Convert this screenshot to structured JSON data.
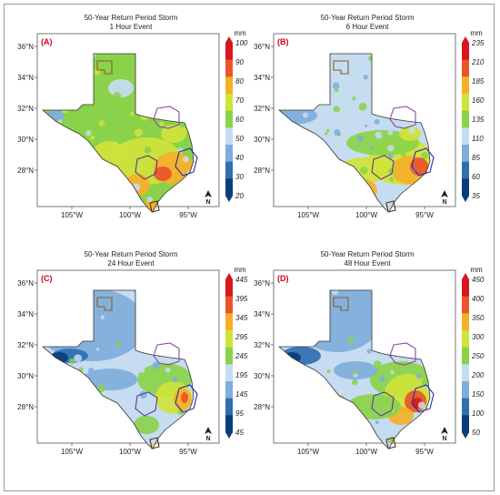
{
  "panels": [
    {
      "id": "A",
      "label": "(A)",
      "title": "50-Year Return Period Storm",
      "subtitle": "1 Hour Event",
      "units": "mm",
      "colorbar": {
        "ticks": [
          "20",
          "30",
          "40",
          "50",
          "60",
          "70",
          "80",
          "90",
          "100"
        ],
        "colors": [
          "#0b3d7a",
          "#2f6fb0",
          "#7eaedb",
          "#c6dcf0",
          "#8ad24a",
          "#cfe33a",
          "#f5b02a",
          "#e9562a",
          "#d7171e"
        ]
      },
      "dominant_colors": [
        "#8ad24a",
        "#cfe33a",
        "#f5b02a",
        "#e9562a"
      ]
    },
    {
      "id": "B",
      "label": "(B)",
      "title": "50-Year Return Period Storm",
      "subtitle": "6 Hour Event",
      "units": "mm",
      "colorbar": {
        "ticks": [
          "35",
          "60",
          "85",
          "110",
          "135",
          "160",
          "185",
          "210",
          "235"
        ],
        "colors": [
          "#0b3d7a",
          "#2f6fb0",
          "#7eaedb",
          "#c6dcf0",
          "#8ad24a",
          "#cfe33a",
          "#f5b02a",
          "#e9562a",
          "#d7171e"
        ]
      },
      "dominant_colors": [
        "#c6dcf0",
        "#8ad24a",
        "#cfe33a",
        "#f5b02a",
        "#e9562a"
      ]
    },
    {
      "id": "C",
      "label": "(C)",
      "title": "50-Year Return Period Storm",
      "subtitle": "24 Hour Event",
      "units": "mm",
      "colorbar": {
        "ticks": [
          "45",
          "95",
          "145",
          "195",
          "245",
          "295",
          "345",
          "395",
          "445"
        ],
        "colors": [
          "#0b3d7a",
          "#2f6fb0",
          "#7eaedb",
          "#c6dcf0",
          "#8ad24a",
          "#cfe33a",
          "#f5b02a",
          "#e9562a",
          "#d7171e"
        ]
      },
      "dominant_colors": [
        "#4b87c2",
        "#c6dcf0",
        "#8ad24a",
        "#cfe33a",
        "#f5b02a"
      ]
    },
    {
      "id": "D",
      "label": "(D)",
      "title": "50-Year Return Period Storm",
      "subtitle": "48 Hour Event",
      "units": "mm",
      "colorbar": {
        "ticks": [
          "50",
          "100",
          "150",
          "200",
          "250",
          "300",
          "350",
          "400",
          "450"
        ],
        "colors": [
          "#0b3d7a",
          "#2f6fb0",
          "#7eaedb",
          "#c6dcf0",
          "#8ad24a",
          "#cfe33a",
          "#f5b02a",
          "#e9562a",
          "#d7171e"
        ]
      },
      "dominant_colors": [
        "#2f6fb0",
        "#c6dcf0",
        "#8ad24a",
        "#f5b02a",
        "#e9562a"
      ]
    }
  ],
  "axes": {
    "lat_ticks": [
      "36°N",
      "34°N",
      "32°N",
      "30°N",
      "28°N"
    ],
    "lon_ticks": [
      "105°W",
      "100°W",
      "95°W"
    ]
  },
  "north_arrow_label": "N",
  "outline_colors": {
    "panhandle": "#8b5a2b",
    "dfw": "#8b4aa0",
    "austin": "#5a3a8a",
    "houston": "#2a2aa8",
    "south": "#5a2a1a"
  }
}
